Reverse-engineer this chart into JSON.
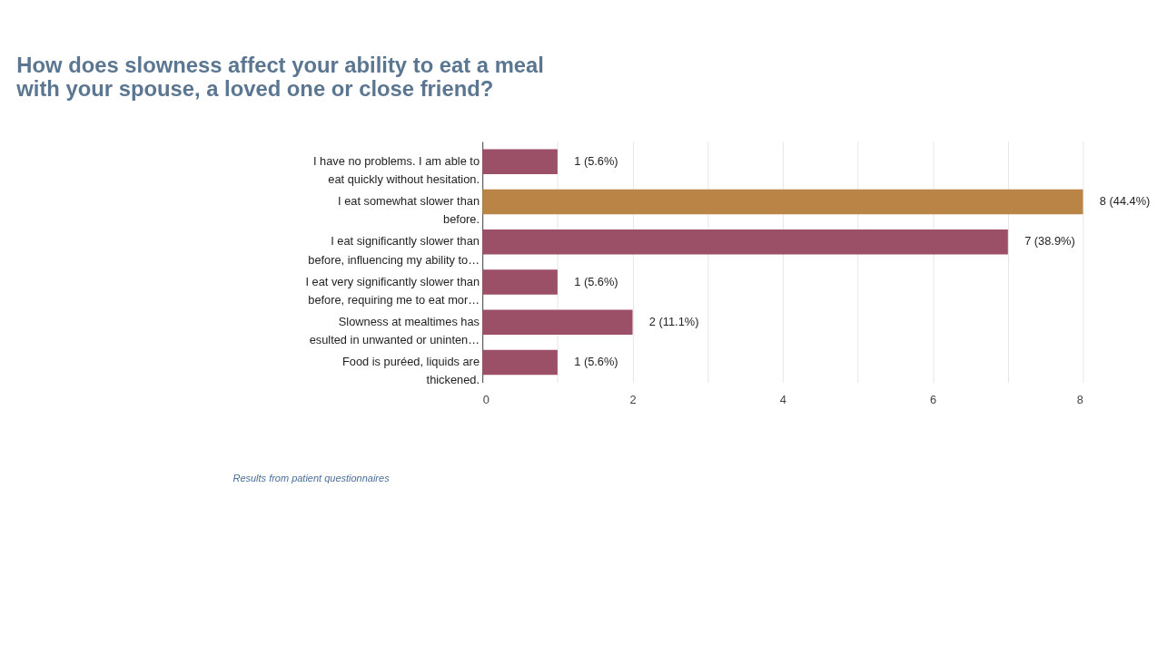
{
  "chart_data": {
    "type": "bar",
    "orientation": "horizontal",
    "title": "How does slowness affect your ability to eat a meal with your spouse, a loved one or close friend?",
    "categories": [
      "I have no problems. I am able to\neat quickly without hesitation.",
      "I eat somewhat slower than\nbefore.",
      "I eat significantly slower than\nbefore, influencing my ability to…",
      "I eat very significantly slower than\nbefore, requiring me to eat mor…",
      "Slowness at mealtimes has\nesulted in unwanted or uninten…",
      "Food is puréed, liquids are\nthickened."
    ],
    "values": [
      1,
      8,
      7,
      1,
      2,
      1
    ],
    "value_labels": [
      "1 (5.6%)",
      "8 (44.4%)",
      "7 (38.9%)",
      "1 (5.6%)",
      "2 (11.1%)",
      "1 (5.6%)"
    ],
    "colors": [
      "#9c5068",
      "#bb8447",
      "#9c5068",
      "#9c5068",
      "#9c5068",
      "#9c5068"
    ],
    "xlim": [
      0,
      8
    ],
    "xticks": [
      0,
      {
        "value": 1,
        "label": null
      },
      2,
      {
        "value": 3,
        "label": null
      },
      4,
      {
        "value": 5,
        "label": null
      },
      6,
      {
        "value": 7,
        "label": null
      },
      8
    ],
    "grid": "x",
    "annotations": [
      "Results from patient questionnaires"
    ]
  }
}
